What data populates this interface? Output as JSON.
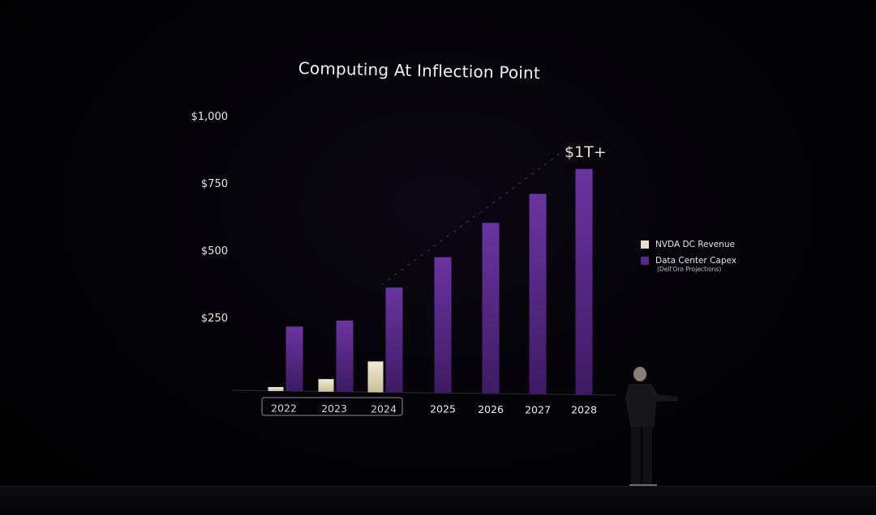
{
  "slide": {
    "title": "Computing At Inflection Point",
    "callout": "$1T+"
  },
  "legend": {
    "items": [
      {
        "label": "NVDA DC Revenue",
        "color": "#e8e0c8"
      },
      {
        "label": "Data Center Capex",
        "color": "#5b2a86"
      }
    ],
    "note": "(Dell'Oro Projections)"
  },
  "chart_data": {
    "type": "bar",
    "title": "Computing At Inflection Point",
    "categories": [
      "2022",
      "2023",
      "2024",
      "2025",
      "2026",
      "2027",
      "2028"
    ],
    "highlighted_categories": [
      "2022",
      "2023",
      "2024"
    ],
    "y_tick_labels": [
      "$250",
      "$500",
      "$750",
      "$1,000"
    ],
    "y_ticks": [
      250,
      500,
      750,
      1000
    ],
    "ylim": [
      0,
      1000
    ],
    "series": [
      {
        "name": "NVDA DC Revenue",
        "color": "#e8e0c8",
        "values": [
          15,
          47,
          115,
          null,
          null,
          null,
          null
        ]
      },
      {
        "name": "Data Center Capex",
        "color": "#5b2a86",
        "values": [
          240,
          265,
          390,
          505,
          635,
          745,
          840
        ]
      }
    ],
    "annotation": "$1T+",
    "legend_position": "right",
    "grid": false
  }
}
